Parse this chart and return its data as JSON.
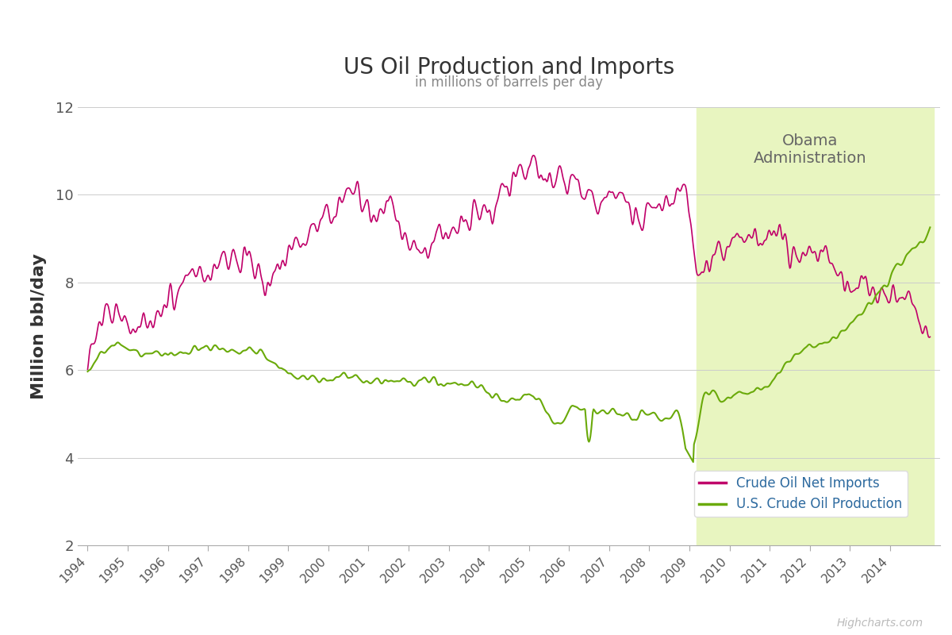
{
  "title": "US Oil Production and Imports",
  "subtitle": "in millions of barrels per day",
  "ylabel": "Million bbl/day",
  "credit": "Highcharts.com",
  "obama_label": "Obama\nAdministration",
  "obama_start": 2009.17,
  "obama_end": 2015.1,
  "obama_color": "#e8f5c0",
  "ylim": [
    2,
    12
  ],
  "yticks": [
    2,
    4,
    6,
    8,
    10,
    12
  ],
  "xlim_start": 1993.75,
  "xlim_end": 2015.25,
  "imports_color": "#c0006a",
  "production_color": "#6aaa0a",
  "background_color": "#ffffff",
  "grid_color": "#cccccc",
  "legend_text_color": "#2d6a9f",
  "imports_label": "Crude Oil Net Imports",
  "production_label": "U.S. Crude Oil Production"
}
